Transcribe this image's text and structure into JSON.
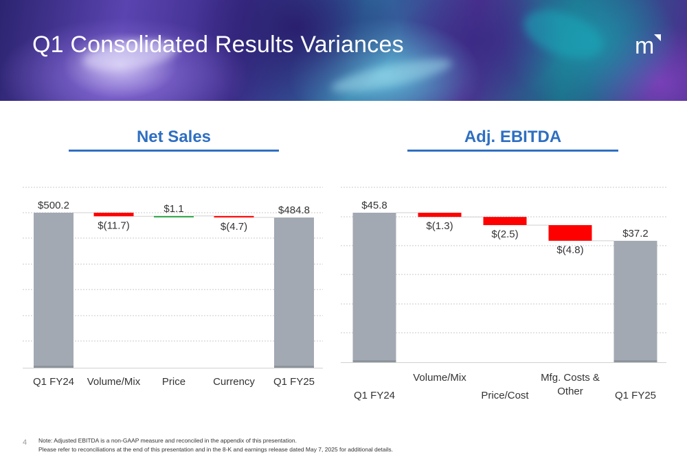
{
  "slide": {
    "title": "Q1 Consolidated Results Variances",
    "page_number": "4",
    "note_line1": "Note: Adjusted EBITDA is a non-GAAP measure and reconciled in the appendix of this presentation.",
    "note_line2": "Please refer to reconciliations at the end of this presentation and in the 8-K and earnings release dated May 7, 2025 for additional details.",
    "logo_letter": "m"
  },
  "colors": {
    "total": "#a3a9b3",
    "decrease": "#ff0000",
    "increase": "#22a13f",
    "heading": "#2e6fc2",
    "grid": "#c8c8c8"
  },
  "chart_data": [
    {
      "type": "bar",
      "subtype": "waterfall",
      "title": "Net Sales",
      "categories": [
        "Q1 FY24",
        "Volume/Mix",
        "Price",
        "Currency",
        "Q1 FY25"
      ],
      "values": [
        500.2,
        -11.7,
        1.1,
        -4.7,
        484.8
      ],
      "kinds": [
        "total",
        "delta",
        "delta",
        "delta",
        "total"
      ],
      "data_labels": [
        "$500.2",
        "$(11.7)",
        "$1.1",
        "$(4.7)",
        "$484.8"
      ],
      "grid": true
    },
    {
      "type": "bar",
      "subtype": "waterfall",
      "title": "Adj. EBITDA",
      "categories": [
        "Q1 FY24",
        "Volume/Mix",
        "Price/Cost",
        "Mfg. Costs & Other",
        "Q1 FY25"
      ],
      "values": [
        45.8,
        -1.3,
        -2.5,
        -4.8,
        37.2
      ],
      "kinds": [
        "total",
        "delta",
        "delta",
        "delta",
        "total"
      ],
      "data_labels": [
        "$45.8",
        "$(1.3)",
        "$(2.5)",
        "$(4.8)",
        "$37.2"
      ],
      "grid": true
    }
  ]
}
